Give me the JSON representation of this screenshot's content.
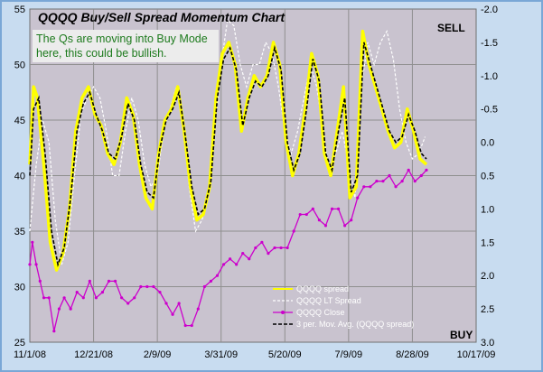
{
  "chart_data": {
    "type": "line",
    "title": "QQQQ Buy/Sell Spread Momentum Chart",
    "annotation": "The Qs are moving into Buy Mode here, this could be bullish.",
    "sell_label": "SELL",
    "buy_label": "BUY",
    "grid": true,
    "legend_position": "bottom-right",
    "x_tick_labels": [
      "11/1/08",
      "12/21/08",
      "2/9/09",
      "3/31/09",
      "5/20/09",
      "7/9/09",
      "8/28/09",
      "10/17/09"
    ],
    "x_range": [
      "11/1/08",
      "10/17/09"
    ],
    "y_left": {
      "range": [
        25,
        55
      ],
      "ticks": [
        25,
        30,
        35,
        40,
        45,
        50,
        55
      ]
    },
    "y_right": {
      "range": [
        3.0,
        -2.0
      ],
      "inverted": true,
      "ticks": [
        -2.0,
        -1.5,
        -1.0,
        -0.5,
        0.0,
        0.5,
        1.0,
        1.5,
        2.0,
        2.5,
        3.0
      ]
    },
    "colors": {
      "plot_bg": "#c9c3cf",
      "frame_bg": "#c8dcf0",
      "spread": "#ffff00",
      "lt_spread": "#ffffff",
      "close": "#cc00cc",
      "mov_avg": "#000000",
      "annotation_text": "#1d7a1d"
    },
    "series": [
      {
        "name": "QQQQ spread",
        "axis": "left",
        "points": [
          [
            "11/1/08",
            41
          ],
          [
            "11/4/08",
            48
          ],
          [
            "11/7/08",
            47
          ],
          [
            "11/12/08",
            41
          ],
          [
            "11/17/08",
            34
          ],
          [
            "11/22/08",
            31.5
          ],
          [
            "11/27/08",
            33
          ],
          [
            "12/2/08",
            37
          ],
          [
            "12/7/08",
            44
          ],
          [
            "12/12/08",
            47
          ],
          [
            "12/17/08",
            48
          ],
          [
            "12/22/08",
            45.5
          ],
          [
            "12/27/08",
            44.5
          ],
          [
            "1/1/09",
            42
          ],
          [
            "1/6/09",
            41
          ],
          [
            "1/11/09",
            43
          ],
          [
            "1/16/09",
            47
          ],
          [
            "1/21/09",
            45.5
          ],
          [
            "1/26/09",
            41
          ],
          [
            "1/31/09",
            38
          ],
          [
            "2/5/09",
            37
          ],
          [
            "2/10/09",
            42
          ],
          [
            "2/15/09",
            45
          ],
          [
            "2/20/09",
            46
          ],
          [
            "2/25/09",
            48
          ],
          [
            "3/2/09",
            44
          ],
          [
            "3/7/09",
            39
          ],
          [
            "3/12/09",
            36
          ],
          [
            "3/17/09",
            36.5
          ],
          [
            "3/22/09",
            39
          ],
          [
            "3/27/09",
            47
          ],
          [
            "4/1/09",
            51
          ],
          [
            "4/6/09",
            52
          ],
          [
            "4/11/09",
            50
          ],
          [
            "4/16/09",
            44
          ],
          [
            "4/21/09",
            47
          ],
          [
            "4/26/09",
            49
          ],
          [
            "5/1/09",
            48
          ],
          [
            "5/6/09",
            49
          ],
          [
            "5/11/09",
            52
          ],
          [
            "5/16/09",
            50
          ],
          [
            "5/21/09",
            43
          ],
          [
            "5/26/09",
            40
          ],
          [
            "5/31/09",
            42
          ],
          [
            "6/5/09",
            46
          ],
          [
            "6/10/09",
            51
          ],
          [
            "6/15/09",
            49
          ],
          [
            "6/20/09",
            42
          ],
          [
            "6/25/09",
            40
          ],
          [
            "6/30/09",
            44
          ],
          [
            "7/5/09",
            48
          ],
          [
            "7/10/09",
            38
          ],
          [
            "7/15/09",
            39
          ],
          [
            "7/20/09",
            53
          ],
          [
            "7/25/09",
            50
          ],
          [
            "7/30/09",
            48
          ],
          [
            "8/4/09",
            46
          ],
          [
            "8/9/09",
            44
          ],
          [
            "8/14/09",
            42.5
          ],
          [
            "8/19/09",
            43
          ],
          [
            "8/24/09",
            46
          ],
          [
            "8/29/09",
            44
          ],
          [
            "9/3/09",
            41.5
          ],
          [
            "9/8/09",
            41
          ]
        ]
      },
      {
        "name": "QQQQ LT Spread",
        "axis": "left",
        "points": [
          [
            "11/1/08",
            35
          ],
          [
            "11/6/08",
            41
          ],
          [
            "11/11/08",
            45
          ],
          [
            "11/16/08",
            43
          ],
          [
            "11/21/08",
            36
          ],
          [
            "11/26/08",
            32
          ],
          [
            "12/1/08",
            34
          ],
          [
            "12/6/08",
            40
          ],
          [
            "12/11/08",
            45.5
          ],
          [
            "12/16/08",
            47
          ],
          [
            "12/21/08",
            48
          ],
          [
            "12/26/08",
            47
          ],
          [
            "12/31/08",
            44
          ],
          [
            "1/5/09",
            40
          ],
          [
            "1/10/09",
            40
          ],
          [
            "1/15/09",
            44
          ],
          [
            "1/20/09",
            47
          ],
          [
            "1/25/09",
            45
          ],
          [
            "1/30/09",
            41
          ],
          [
            "2/4/09",
            39
          ],
          [
            "2/9/09",
            40
          ],
          [
            "2/14/09",
            44
          ],
          [
            "2/19/09",
            46
          ],
          [
            "2/24/09",
            48
          ],
          [
            "3/1/09",
            45
          ],
          [
            "3/6/09",
            39
          ],
          [
            "3/11/09",
            35
          ],
          [
            "3/16/09",
            36
          ],
          [
            "3/21/09",
            38
          ],
          [
            "3/26/09",
            44
          ],
          [
            "3/31/09",
            50
          ],
          [
            "4/5/09",
            54
          ],
          [
            "4/10/09",
            53.5
          ],
          [
            "4/15/09",
            50
          ],
          [
            "4/20/09",
            48
          ],
          [
            "4/25/09",
            50
          ],
          [
            "4/30/09",
            50
          ],
          [
            "5/5/09",
            52
          ],
          [
            "5/10/09",
            51
          ],
          [
            "5/15/09",
            48
          ],
          [
            "5/20/09",
            44
          ],
          [
            "5/25/09",
            42
          ],
          [
            "5/30/09",
            44
          ],
          [
            "6/4/09",
            47
          ],
          [
            "6/9/09",
            50
          ],
          [
            "6/14/09",
            48
          ],
          [
            "6/19/09",
            44
          ],
          [
            "6/24/09",
            40
          ],
          [
            "6/29/09",
            42
          ],
          [
            "7/4/09",
            44
          ],
          [
            "7/9/09",
            41
          ],
          [
            "7/14/09",
            38
          ],
          [
            "7/19/09",
            48
          ],
          [
            "7/24/09",
            52
          ],
          [
            "7/29/09",
            50
          ],
          [
            "8/3/09",
            52
          ],
          [
            "8/8/09",
            53
          ],
          [
            "8/13/09",
            50.5
          ],
          [
            "8/18/09",
            46
          ],
          [
            "8/23/09",
            43
          ],
          [
            "8/28/09",
            41.5
          ],
          [
            "9/2/09",
            42
          ],
          [
            "9/7/09",
            43.5
          ]
        ]
      },
      {
        "name": "QQQQ Close",
        "axis": "left",
        "points": [
          [
            "11/1/08",
            32
          ],
          [
            "11/3/08",
            34
          ],
          [
            "11/6/08",
            32
          ],
          [
            "11/9/08",
            30.5
          ],
          [
            "11/12/08",
            29
          ],
          [
            "11/16/08",
            29
          ],
          [
            "11/20/08",
            26
          ],
          [
            "11/24/08",
            28
          ],
          [
            "11/28/08",
            29
          ],
          [
            "12/3/08",
            28
          ],
          [
            "12/8/08",
            29.5
          ],
          [
            "12/13/08",
            29
          ],
          [
            "12/18/08",
            30.5
          ],
          [
            "12/23/08",
            29
          ],
          [
            "12/28/08",
            29.5
          ],
          [
            "1/2/09",
            30.5
          ],
          [
            "1/7/09",
            30.5
          ],
          [
            "1/12/09",
            29
          ],
          [
            "1/17/09",
            28.5
          ],
          [
            "1/22/09",
            29
          ],
          [
            "1/27/09",
            30
          ],
          [
            "2/1/09",
            30
          ],
          [
            "2/6/09",
            30
          ],
          [
            "2/11/09",
            29.5
          ],
          [
            "2/16/09",
            28.5
          ],
          [
            "2/21/09",
            27.5
          ],
          [
            "2/26/09",
            28.5
          ],
          [
            "3/3/09",
            26.5
          ],
          [
            "3/8/09",
            26.5
          ],
          [
            "3/13/09",
            28
          ],
          [
            "3/18/09",
            30
          ],
          [
            "3/23/09",
            30.5
          ],
          [
            "3/28/09",
            31
          ],
          [
            "4/2/09",
            32
          ],
          [
            "4/7/09",
            32.5
          ],
          [
            "4/12/09",
            32
          ],
          [
            "4/17/09",
            33
          ],
          [
            "4/22/09",
            32.5
          ],
          [
            "4/27/09",
            33.5
          ],
          [
            "5/2/09",
            34
          ],
          [
            "5/7/09",
            33
          ],
          [
            "5/12/09",
            33.5
          ],
          [
            "5/17/09",
            33.5
          ],
          [
            "5/22/09",
            33.5
          ],
          [
            "5/27/09",
            35
          ],
          [
            "6/1/09",
            36.5
          ],
          [
            "6/6/09",
            36.5
          ],
          [
            "6/11/09",
            37
          ],
          [
            "6/16/09",
            36
          ],
          [
            "6/21/09",
            35.5
          ],
          [
            "6/26/09",
            37
          ],
          [
            "7/1/09",
            37
          ],
          [
            "7/6/09",
            35.5
          ],
          [
            "7/11/09",
            36
          ],
          [
            "7/16/09",
            38
          ],
          [
            "7/21/09",
            39
          ],
          [
            "7/26/09",
            39
          ],
          [
            "7/31/09",
            39.5
          ],
          [
            "8/5/09",
            39.5
          ],
          [
            "8/10/09",
            40
          ],
          [
            "8/15/09",
            39
          ],
          [
            "8/20/09",
            39.5
          ],
          [
            "8/25/09",
            40.5
          ],
          [
            "8/30/09",
            39.5
          ],
          [
            "9/4/09",
            40
          ],
          [
            "9/8/09",
            40.5
          ]
        ]
      },
      {
        "name": "3 per. Mov. Avg. (QQQQ spread)",
        "axis": "left",
        "points": [
          [
            "11/1/08",
            40
          ],
          [
            "11/4/08",
            46
          ],
          [
            "11/8/08",
            47
          ],
          [
            "11/13/08",
            42
          ],
          [
            "11/18/08",
            35
          ],
          [
            "11/23/08",
            32
          ],
          [
            "11/28/08",
            33.5
          ],
          [
            "12/3/08",
            38
          ],
          [
            "12/8/08",
            44
          ],
          [
            "12/13/08",
            46.5
          ],
          [
            "12/18/08",
            47.5
          ],
          [
            "12/23/08",
            45.5
          ],
          [
            "12/28/08",
            44
          ],
          [
            "1/2/09",
            42
          ],
          [
            "1/7/09",
            41.5
          ],
          [
            "1/12/09",
            43.5
          ],
          [
            "1/17/09",
            46.5
          ],
          [
            "1/22/09",
            45
          ],
          [
            "1/27/09",
            41
          ],
          [
            "2/1/09",
            38.5
          ],
          [
            "2/6/09",
            38
          ],
          [
            "2/11/09",
            42.5
          ],
          [
            "2/16/09",
            45
          ],
          [
            "2/21/09",
            46
          ],
          [
            "2/26/09",
            47.5
          ],
          [
            "3/3/09",
            43.5
          ],
          [
            "3/8/09",
            39
          ],
          [
            "3/13/09",
            36.5
          ],
          [
            "3/18/09",
            37
          ],
          [
            "3/23/09",
            39.5
          ],
          [
            "3/28/09",
            47
          ],
          [
            "4/2/09",
            50.5
          ],
          [
            "4/7/09",
            51.5
          ],
          [
            "4/12/09",
            49.5
          ],
          [
            "4/17/09",
            44.5
          ],
          [
            "4/22/09",
            47
          ],
          [
            "4/27/09",
            48.5
          ],
          [
            "5/2/09",
            48
          ],
          [
            "5/7/09",
            49
          ],
          [
            "5/12/09",
            51.5
          ],
          [
            "5/17/09",
            49.5
          ],
          [
            "5/22/09",
            43
          ],
          [
            "5/27/09",
            40.5
          ],
          [
            "6/1/09",
            42
          ],
          [
            "6/6/09",
            46
          ],
          [
            "6/11/09",
            50.5
          ],
          [
            "6/16/09",
            48.5
          ],
          [
            "6/21/09",
            42
          ],
          [
            "6/26/09",
            40.5
          ],
          [
            "7/1/09",
            44
          ],
          [
            "7/6/09",
            47
          ],
          [
            "7/11/09",
            38.5
          ],
          [
            "7/16/09",
            40
          ],
          [
            "7/21/09",
            52
          ],
          [
            "7/26/09",
            50
          ],
          [
            "7/31/09",
            48
          ],
          [
            "8/5/09",
            46
          ],
          [
            "8/10/09",
            44
          ],
          [
            "8/15/09",
            43
          ],
          [
            "8/20/09",
            43.5
          ],
          [
            "8/25/09",
            45.5
          ],
          [
            "8/30/09",
            44
          ],
          [
            "9/4/09",
            42
          ],
          [
            "9/8/09",
            41.5
          ]
        ]
      }
    ]
  }
}
